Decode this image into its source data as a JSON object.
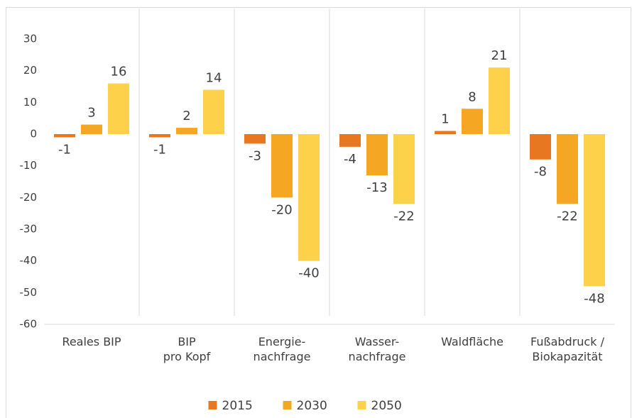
{
  "chart_data": {
    "type": "bar",
    "categories": [
      [
        "Reales BIP"
      ],
      [
        "BIP",
        "pro Kopf"
      ],
      [
        "Energie-",
        "nachfrage"
      ],
      [
        "Wasser-",
        "nachfrage"
      ],
      [
        "Waldfläche"
      ],
      [
        "Fußabdruck /",
        "Biokapazität"
      ]
    ],
    "series": [
      {
        "name": "2015",
        "color": "#e87722",
        "values": [
          -1,
          -1,
          -3,
          -4,
          1,
          -8
        ]
      },
      {
        "name": "2030",
        "color": "#f5a623",
        "values": [
          3,
          2,
          -20,
          -13,
          8,
          -22
        ]
      },
      {
        "name": "2050",
        "color": "#fdd14a",
        "values": [
          16,
          14,
          -40,
          -22,
          21,
          -48
        ]
      }
    ],
    "ylim": [
      -60,
      30
    ],
    "yticks": [
      -60,
      -50,
      -40,
      -30,
      -20,
      -10,
      0,
      10,
      20,
      30
    ],
    "grid": false,
    "legend": "bottom"
  }
}
